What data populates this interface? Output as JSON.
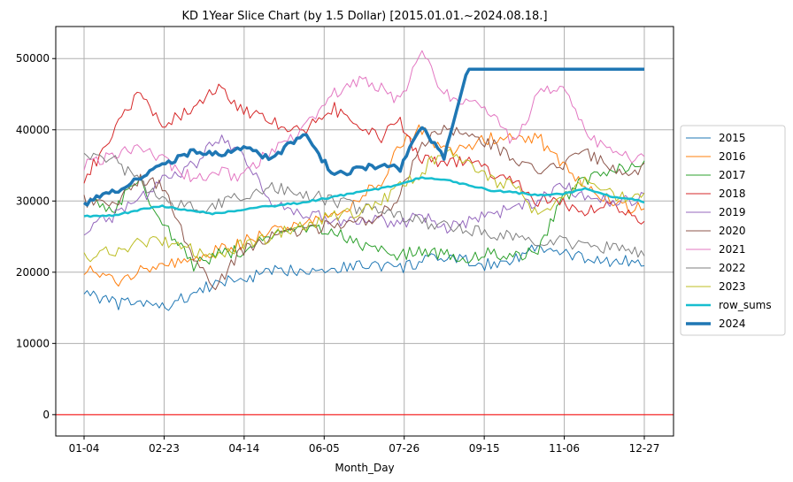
{
  "chart_data": {
    "type": "line",
    "title": "KD 1Year Slice Chart (by 1.5 Dollar) [2015.01.01.~2024.08.18.]",
    "xlabel": "Month_Day",
    "ylabel": "",
    "x_ticks": [
      "01-04",
      "02-23",
      "04-14",
      "06-05",
      "07-26",
      "09-15",
      "11-06",
      "12-27"
    ],
    "y_ticks": [
      0,
      10000,
      20000,
      30000,
      40000,
      50000
    ],
    "ylim": [
      -3000,
      54500
    ],
    "grid": true,
    "legend_position": "right",
    "reference_line": {
      "y": 0,
      "color": "#ff0000"
    },
    "x_day_points": [
      0,
      20,
      35,
      50,
      70,
      85,
      100,
      120,
      140,
      160,
      175,
      190,
      202,
      215,
      230,
      245,
      260,
      275,
      290,
      305,
      320,
      335,
      350,
      358
    ],
    "series": [
      {
        "name": "2015",
        "color": "#1f77b4",
        "width": 1,
        "values": [
          17500,
          15500,
          15800,
          15000,
          17000,
          18500,
          19000,
          20000,
          20500,
          20500,
          21000,
          21000,
          20500,
          21500,
          22000,
          21500,
          21000,
          22000,
          23500,
          22500,
          22000,
          21500,
          21500,
          21000
        ]
      },
      {
        "name": "2016",
        "color": "#ff7f0e",
        "width": 1,
        "values": [
          20500,
          18500,
          20500,
          21000,
          21500,
          23000,
          24000,
          26000,
          27000,
          28000,
          30000,
          33000,
          38000,
          40000,
          37000,
          37500,
          39000,
          38500,
          39000,
          35000,
          32000,
          30500,
          29000,
          29000
        ]
      },
      {
        "name": "2017",
        "color": "#2ca02c",
        "width": 1,
        "values": [
          30000,
          29000,
          33000,
          27000,
          21000,
          22500,
          23000,
          25000,
          26000,
          25500,
          24000,
          23000,
          22500,
          23000,
          22500,
          22000,
          23000,
          22000,
          23000,
          30000,
          33000,
          34000,
          35000,
          35000
        ]
      },
      {
        "name": "2018",
        "color": "#d62728",
        "width": 1,
        "values": [
          33000,
          40000,
          45000,
          41000,
          43000,
          46000,
          43000,
          41000,
          40000,
          43000,
          40000,
          39000,
          41000,
          36000,
          35000,
          36000,
          34000,
          33000,
          30000,
          30000,
          28000,
          30000,
          28000,
          27500
        ]
      },
      {
        "name": "2019",
        "color": "#9467bd",
        "width": 1,
        "values": [
          26000,
          28000,
          30000,
          33000,
          35000,
          39000,
          37000,
          30000,
          28000,
          27500,
          27000,
          27500,
          26500,
          28000,
          26000,
          27000,
          28000,
          29000,
          30000,
          32000,
          31000,
          30000,
          30000,
          31000
        ]
      },
      {
        "name": "2020",
        "color": "#8c564b",
        "width": 1,
        "values": [
          30000,
          29500,
          33000,
          32000,
          22000,
          18000,
          23000,
          25000,
          26000,
          26500,
          27000,
          28000,
          31000,
          38000,
          40000,
          39000,
          38000,
          36000,
          34000,
          35000,
          37000,
          35000,
          34000,
          34500
        ]
      },
      {
        "name": "2021",
        "color": "#e377c2",
        "width": 1,
        "values": [
          35000,
          36500,
          38000,
          36000,
          33000,
          34000,
          33500,
          37000,
          40000,
          45000,
          47000,
          46000,
          44000,
          51000,
          45000,
          44000,
          42000,
          38000,
          45000,
          46000,
          40000,
          37000,
          36000,
          37000
        ]
      },
      {
        "name": "2022",
        "color": "#7f7f7f",
        "width": 1,
        "values": [
          37000,
          35500,
          33000,
          30000,
          29000,
          29500,
          30500,
          32000,
          31000,
          30000,
          29000,
          28500,
          28000,
          27000,
          26500,
          26000,
          25500,
          25000,
          24000,
          24500,
          23500,
          23500,
          23000,
          22500
        ]
      },
      {
        "name": "2023",
        "color": "#bcbd22",
        "width": 1,
        "values": [
          22000,
          23000,
          24000,
          24500,
          23000,
          22000,
          24000,
          25000,
          26500,
          28000,
          28500,
          30000,
          32000,
          34000,
          37000,
          35000,
          33000,
          32000,
          28000,
          30000,
          33000,
          31000,
          30000,
          31000
        ]
      },
      {
        "name": "row_sums",
        "color": "#17becf",
        "width": 2.5,
        "values": [
          27800,
          28000,
          28700,
          29300,
          28500,
          28200,
          28800,
          29300,
          29800,
          30600,
          31200,
          31800,
          32300,
          33300,
          33000,
          32200,
          31500,
          31200,
          30800,
          31000,
          31700,
          30700,
          30300,
          29900
        ]
      },
      {
        "name": "2024",
        "color": "#1f77b4",
        "width": 3.5,
        "values": [
          29500,
          31500,
          33000,
          35000,
          37000,
          36500,
          37500,
          36000,
          39500,
          33500,
          34500,
          35000,
          34500,
          40500,
          36000,
          48500,
          48500,
          48500,
          48500,
          48500,
          48500,
          48500,
          48500,
          48500
        ]
      }
    ]
  }
}
